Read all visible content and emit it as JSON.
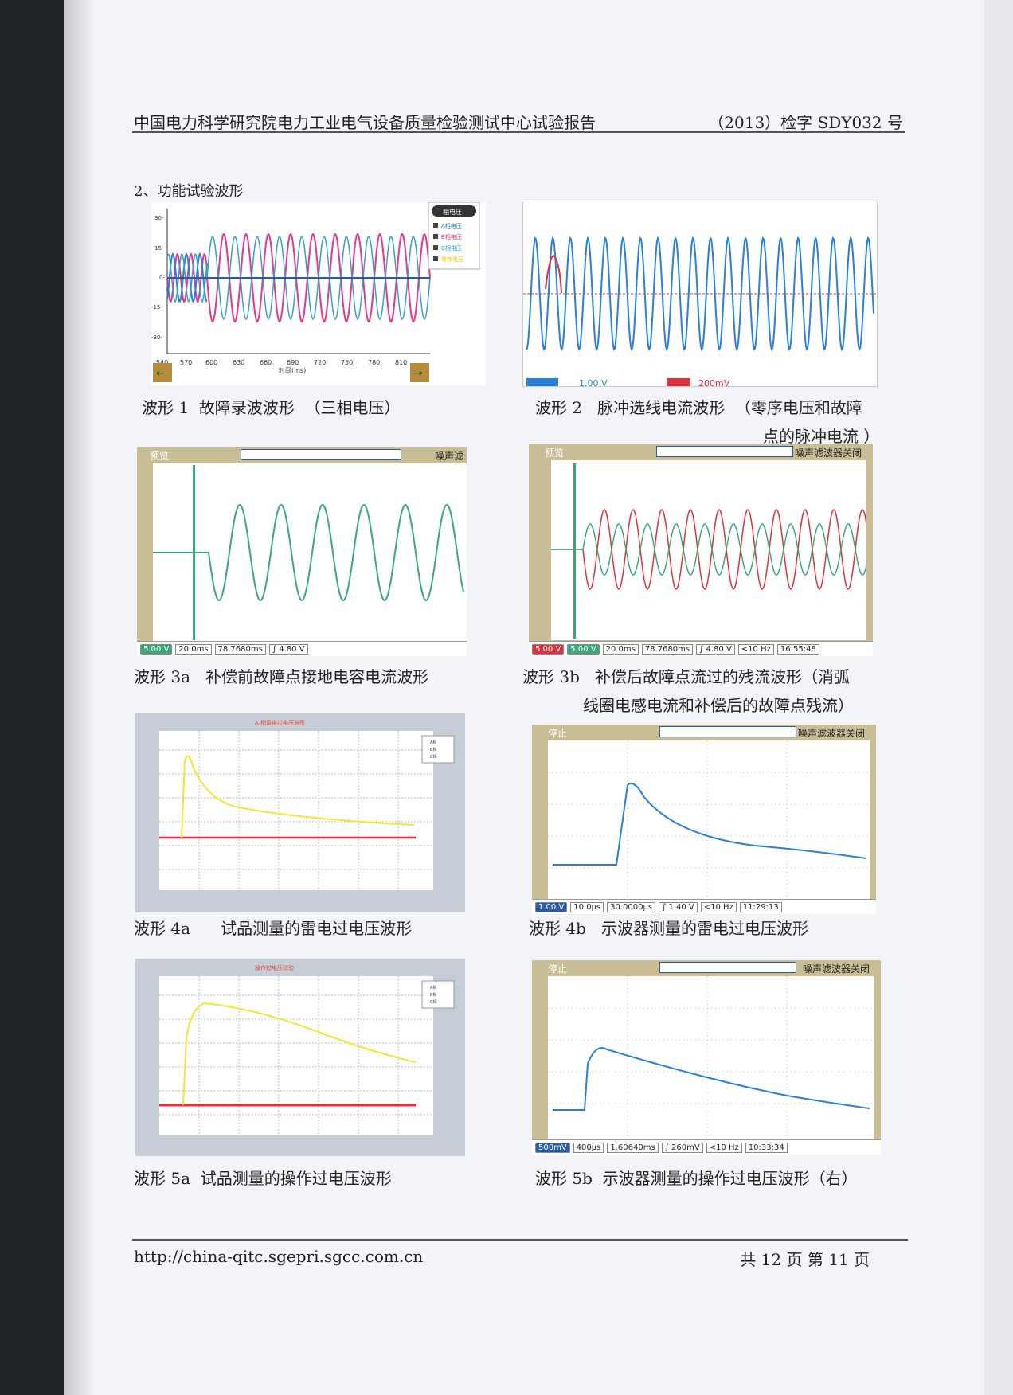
{
  "header": {
    "title": "中国电力科学研究院电力工业电气设备质量检验测试中心试验报告",
    "report_no": "（2013）检字 SDY032 号"
  },
  "section_title": "2、功能试验波形",
  "figures": {
    "fig1": {
      "caption": "波形 1  故障录波波形  （三相电压）",
      "legend_title": "相电压",
      "legend": [
        "A相电压",
        "B相电压",
        "C相电压",
        "零序电压"
      ],
      "x_ticks": [
        "540",
        "570",
        "600",
        "630",
        "660",
        "690",
        "720",
        "750",
        "780",
        "810"
      ],
      "y_ticks": [
        "30-",
        "15-",
        "0-",
        "-15-",
        "-30-"
      ],
      "x_label": "时间(ms)"
    },
    "fig2": {
      "caption": "波形 2   脉冲选线电流波形  （零序电压和故障",
      "caption2": "点的脉冲电流 ）",
      "status": [
        "1.00 V",
        "200mV"
      ]
    },
    "fig3a": {
      "caption": "波形 3a   补偿前故障点接地电容电流波形",
      "mode": "预览",
      "right_label": "噪声滤",
      "status": [
        "5.00 V",
        "20.0ms",
        "78.7680ms",
        "∫ 4.80 V"
      ]
    },
    "fig3b": {
      "caption": "波形 3b   补偿后故障点流过的残流波形（消弧",
      "caption2": "线圈电感电流和补偿后的故障点残流）",
      "mode": "预览",
      "right_label": "噪声滤波器关闭",
      "status": [
        "5.00 V",
        "5.00 V",
        "20.0ms",
        "78.7680ms",
        "∫ 4.80 V",
        "<10 Hz",
        "16:55:48"
      ]
    },
    "fig4a": {
      "caption": "波形 4a      试品测量的雷电过电压波形",
      "chart_title": "A 相雷电过电压波形",
      "legend": [
        "A相",
        "B相",
        "C相"
      ]
    },
    "fig4b": {
      "caption": "波形 4b   示波器测量的雷电过电压波形",
      "mode": "停止",
      "right_label": "噪声滤波器关闭",
      "status": [
        "1.00 V",
        "10.0µs",
        "30.0000µs",
        "∫ 1.40 V",
        "<10 Hz",
        "11:29:13"
      ]
    },
    "fig5a": {
      "caption": "波形 5a  试品测量的操作过电压波形",
      "chart_title": "操作过电压试验",
      "legend": [
        "A相",
        "B相",
        "C相"
      ]
    },
    "fig5b": {
      "caption": "波形 5b  示波器测量的操作过电压波形（右）",
      "mode": "停止",
      "right_label": "噪声滤波器关闭",
      "status": [
        "500mV",
        "400µs",
        "1.60640ms",
        "∫ 260mV",
        "<10 Hz",
        "10:33:34"
      ]
    }
  },
  "footer": {
    "url": "http://china-qitc.sgepri.sgcc.com.cn",
    "pages": "共 12 页  第 11 页"
  },
  "colors": {
    "blue": "#2a7fd6",
    "red": "#e0303c",
    "green": "#3aa878",
    "yellow": "#f2e533",
    "scope_bezel": "#c9bd95"
  }
}
